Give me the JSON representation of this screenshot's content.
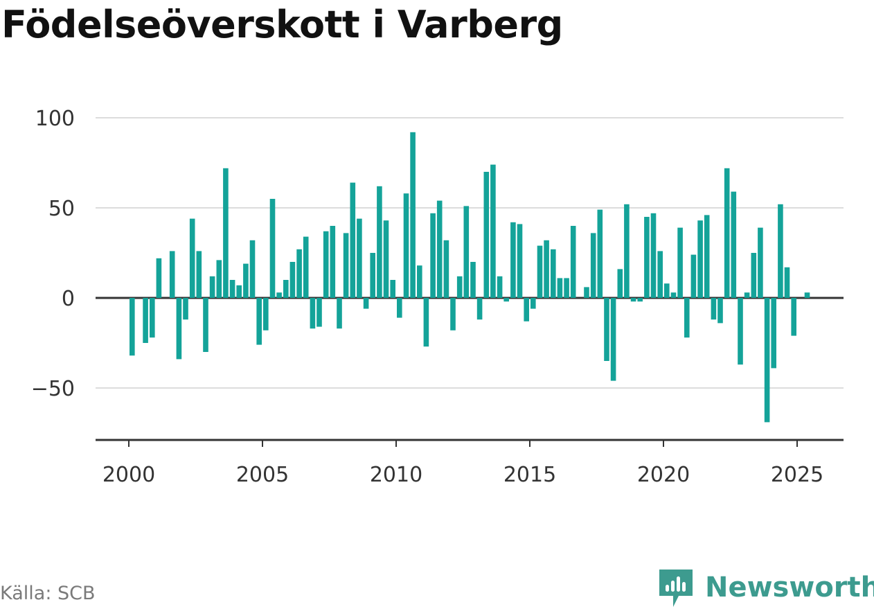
{
  "title": "Födelseöverskott i Varberg",
  "source": "Källa: SCB",
  "brand": {
    "name": "Newsworthy",
    "icon": "newsworthy-logo-icon",
    "color": "#3d9b8f"
  },
  "colors": {
    "bar": "#14a399",
    "grid": "#dcdcdc",
    "zero_line": "#333333"
  },
  "chart_data": {
    "type": "bar",
    "title": "Födelseöverskott i Varberg",
    "xlabel": "",
    "ylabel": "",
    "frequency": "quarterly",
    "x_ticks": [
      "2000",
      "2005",
      "2010",
      "2015",
      "2020",
      "2025"
    ],
    "y_ticks": [
      -50,
      0,
      50,
      100
    ],
    "ylim": [
      -80,
      105
    ],
    "grid": true,
    "series": [
      {
        "x": [
          "2000-Q1",
          "2000-Q2",
          "2000-Q3",
          "2000-Q4",
          "2001-Q1",
          "2001-Q2",
          "2001-Q3",
          "2001-Q4",
          "2002-Q1",
          "2002-Q2",
          "2002-Q3",
          "2002-Q4",
          "2003-Q1",
          "2003-Q2",
          "2003-Q3",
          "2003-Q4",
          "2004-Q1",
          "2004-Q2",
          "2004-Q3",
          "2004-Q4",
          "2005-Q1",
          "2005-Q2",
          "2005-Q3",
          "2005-Q4",
          "2006-Q1",
          "2006-Q2",
          "2006-Q3",
          "2006-Q4",
          "2007-Q1",
          "2007-Q2",
          "2007-Q3",
          "2007-Q4",
          "2008-Q1",
          "2008-Q2",
          "2008-Q3",
          "2008-Q4",
          "2009-Q1",
          "2009-Q2",
          "2009-Q3",
          "2009-Q4",
          "2010-Q1",
          "2010-Q2",
          "2010-Q3",
          "2010-Q4",
          "2011-Q1",
          "2011-Q2",
          "2011-Q3",
          "2011-Q4",
          "2012-Q1",
          "2012-Q2",
          "2012-Q3",
          "2012-Q4",
          "2013-Q1",
          "2013-Q2",
          "2013-Q3",
          "2013-Q4",
          "2014-Q1",
          "2014-Q2",
          "2014-Q3",
          "2014-Q4",
          "2015-Q1",
          "2015-Q2",
          "2015-Q3",
          "2015-Q4",
          "2016-Q1",
          "2016-Q2",
          "2016-Q3",
          "2016-Q4",
          "2017-Q1",
          "2017-Q2",
          "2017-Q3",
          "2017-Q4",
          "2018-Q1",
          "2018-Q2",
          "2018-Q3",
          "2018-Q4",
          "2019-Q1",
          "2019-Q2",
          "2019-Q3",
          "2019-Q4",
          "2020-Q1",
          "2020-Q2",
          "2020-Q3",
          "2020-Q4",
          "2021-Q1",
          "2021-Q2",
          "2021-Q3",
          "2021-Q4",
          "2022-Q1",
          "2022-Q2",
          "2022-Q3",
          "2022-Q4",
          "2023-Q1",
          "2023-Q2",
          "2023-Q3",
          "2023-Q4",
          "2024-Q1",
          "2024-Q2",
          "2024-Q3",
          "2024-Q4",
          "2025-Q1",
          "2025-Q2"
        ],
        "values": [
          -32,
          0,
          -25,
          -22,
          22,
          0,
          26,
          -34,
          -12,
          44,
          26,
          -30,
          12,
          21,
          72,
          10,
          7,
          19,
          32,
          -26,
          -18,
          55,
          3,
          10,
          20,
          27,
          34,
          -17,
          -16,
          37,
          40,
          -17,
          36,
          64,
          44,
          -6,
          25,
          62,
          43,
          10,
          -11,
          58,
          92,
          18,
          -27,
          47,
          54,
          32,
          -18,
          12,
          51,
          20,
          -12,
          70,
          74,
          12,
          -2,
          42,
          41,
          -13,
          -6,
          29,
          32,
          27,
          11,
          11,
          40,
          0,
          6,
          36,
          49,
          -35,
          -46,
          16,
          52,
          -2,
          -2,
          45,
          47,
          26,
          8,
          3,
          39,
          -22,
          24,
          43,
          46,
          -12,
          -14,
          72,
          59,
          -37,
          3,
          25,
          39,
          -69,
          -39,
          52,
          17,
          -21,
          0,
          3
        ]
      }
    ]
  }
}
